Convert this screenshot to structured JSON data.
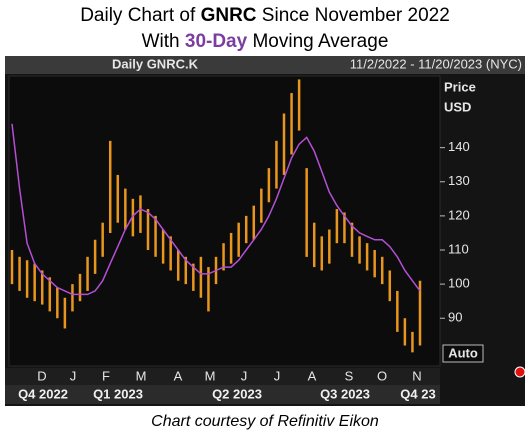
{
  "chart_data": {
    "type": "range_bar",
    "title_line1": [
      "Daily Chart of ",
      "GNRC",
      " Since November 2022"
    ],
    "title_line2": [
      "With ",
      "30-Day",
      " Moving Average"
    ],
    "header_left": "Daily GNRC.K",
    "header_right": "11/2/2022 - 11/20/2023 (NYC)",
    "y_axis_label": [
      "Price",
      "USD"
    ],
    "auto_label": "Auto",
    "footer": "Chart courtesy of Refinitiv Eikon",
    "months": [
      "D",
      "J",
      "F",
      "M",
      "A",
      "M",
      "J",
      "J",
      "A",
      "S",
      "O",
      "N"
    ],
    "quarters": [
      "Q4 2022",
      "Q1 2023",
      "Q2 2023",
      "Q3 2023",
      "Q4 23"
    ],
    "ylim": [
      76,
      161
    ],
    "yticks": [
      90,
      100,
      110,
      120,
      130,
      140
    ],
    "series": [
      {
        "name": "GNRC.K",
        "color": "#e8961e",
        "high": [
          110,
          108,
          107,
          106,
          104,
          102,
          99,
          96,
          100,
          103,
          108,
          113,
          118,
          142,
          132,
          128,
          125,
          126,
          122,
          120,
          116,
          114,
          110,
          108,
          106,
          108,
          105,
          108,
          112,
          115,
          118,
          120,
          123,
          128,
          134,
          142,
          150,
          156,
          160,
          134,
          118,
          114,
          116,
          122,
          121,
          118,
          114,
          112,
          110,
          108,
          104,
          98,
          90,
          86,
          101
        ],
        "low": [
          100,
          98,
          96,
          95,
          94,
          92,
          90,
          87,
          92,
          95,
          98,
          103,
          108,
          115,
          118,
          116,
          114,
          115,
          110,
          108,
          106,
          104,
          101,
          100,
          98,
          96,
          92,
          100,
          104,
          106,
          108,
          112,
          113,
          118,
          124,
          128,
          132,
          138,
          145,
          108,
          105,
          104,
          106,
          112,
          112,
          108,
          106,
          104,
          102,
          100,
          95,
          86,
          82,
          80,
          82
        ]
      },
      {
        "name": "30-Day Moving Average",
        "color": "#b44fd6",
        "values": [
          147,
          128,
          112,
          106,
          103,
          101,
          99,
          98,
          97,
          97,
          97,
          98,
          101,
          106,
          111,
          116,
          120,
          122,
          121,
          119,
          116,
          113,
          110,
          107,
          105,
          103,
          103,
          104,
          105,
          105,
          107,
          110,
          113,
          116,
          120,
          125,
          131,
          137,
          141,
          143,
          139,
          133,
          127,
          123,
          120,
          117,
          115,
          114,
          113,
          113,
          111,
          108,
          104,
          101,
          98
        ]
      }
    ]
  }
}
